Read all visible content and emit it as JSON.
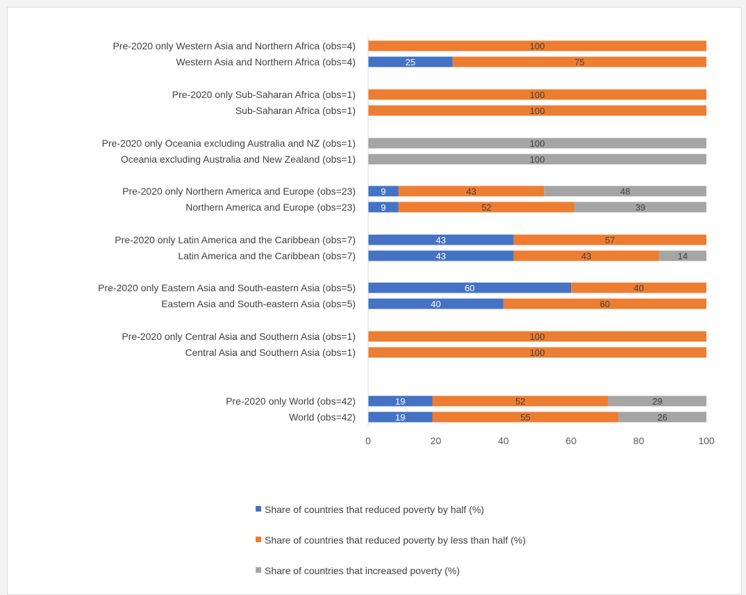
{
  "chart_data": {
    "type": "bar",
    "orientation": "horizontal",
    "stacked": true,
    "xlim": [
      0,
      100
    ],
    "xticks": [
      "0",
      "20",
      "40",
      "60",
      "80",
      "100"
    ],
    "grid": false,
    "legend_position": "bottom",
    "categories": [
      "Pre-2020 only Western Asia and Northern Africa (obs=4)",
      "Western Asia and Northern Africa (obs=4)",
      "Pre-2020 only Sub-Saharan Africa (obs=1)",
      "Sub-Saharan Africa (obs=1)",
      "Pre-2020 only Oceania excluding Australia and NZ (obs=1)",
      "Oceania excluding Australia and New Zealand (obs=1)",
      "Pre-2020 only Northern America and Europe (obs=23)",
      "Northern America and Europe (obs=23)",
      "Pre-2020 only Latin America and the Caribbean (obs=7)",
      "Latin America and the Caribbean (obs=7)",
      "Pre-2020 only Eastern Asia and South-eastern Asia (obs=5)",
      "Eastern Asia and South-eastern Asia (obs=5)",
      "Pre-2020 only Central Asia and Southern Asia (obs=1)",
      "Central Asia and Southern Asia (obs=1)",
      "Pre-2020 only World (obs=42)",
      "World (obs=42)"
    ],
    "series": [
      {
        "name": "Share of countries that reduced poverty by half  (%)",
        "color": "#4472c4",
        "label_color": "#ffffff",
        "values": [
          0,
          25,
          0,
          0,
          0,
          0,
          9,
          9,
          43,
          43,
          60,
          40,
          0,
          0,
          19,
          19
        ]
      },
      {
        "name": "Share of countries that reduced poverty by less than half (%)",
        "color": "#ed7d31",
        "label_color": "#404040",
        "values": [
          100,
          75,
          100,
          100,
          0,
          0,
          43,
          52,
          57,
          43,
          40,
          60,
          100,
          100,
          52,
          55
        ]
      },
      {
        "name": "Share of countries that increased poverty (%)",
        "color": "#a5a5a5",
        "label_color": "#404040",
        "values": [
          0,
          0,
          0,
          0,
          100,
          100,
          48,
          39,
          0,
          14,
          0,
          0,
          0,
          0,
          29,
          26
        ]
      }
    ]
  }
}
